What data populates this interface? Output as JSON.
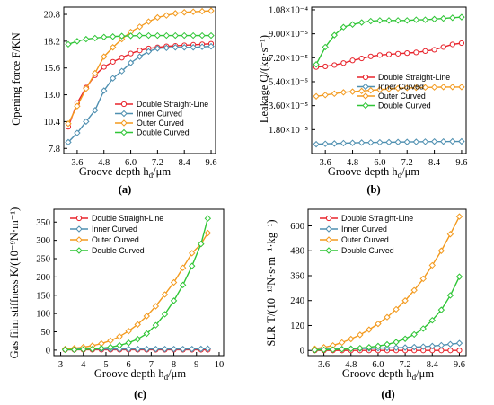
{
  "chart_data": [
    {
      "id": "a",
      "panel_label": "(a)",
      "type": "line",
      "xlabel": "Groove depth h_d/μm",
      "ylabel": "Opening force F/KN",
      "xticks": [
        "3.6",
        "4.8",
        "6.0",
        "7.2",
        "8.4",
        "9.6"
      ],
      "yticks": [
        "7.8",
        "10.4",
        "13.0",
        "15.6",
        "18.2",
        "20.8"
      ],
      "xlim": [
        3.0,
        9.8
      ],
      "ylim": [
        7.3,
        21.5
      ],
      "legend_position": "bottom-right",
      "series": [
        {
          "name": "Double Straight-Line",
          "color": "#e8242c",
          "marker": "circle",
          "x": [
            3.2,
            3.6,
            4.0,
            4.4,
            4.8,
            5.2,
            5.6,
            6.0,
            6.4,
            6.8,
            7.2,
            7.6,
            8.0,
            8.4,
            8.8,
            9.2,
            9.6
          ],
          "y": [
            9.9,
            12.2,
            13.7,
            14.9,
            15.7,
            16.2,
            16.6,
            17.0,
            17.3,
            17.5,
            17.6,
            17.7,
            17.75,
            17.8,
            17.85,
            17.9,
            17.95
          ]
        },
        {
          "name": "Inner Curved",
          "color": "#4e8fb0",
          "marker": "diamond",
          "x": [
            3.2,
            3.6,
            4.0,
            4.4,
            4.8,
            5.2,
            5.6,
            6.0,
            6.4,
            6.8,
            7.2,
            7.6,
            8.0,
            8.4,
            8.8,
            9.2,
            9.6
          ],
          "y": [
            8.4,
            9.3,
            10.4,
            11.5,
            13.4,
            14.6,
            15.3,
            16.1,
            16.7,
            17.2,
            17.5,
            17.55,
            17.6,
            17.6,
            17.6,
            17.65,
            17.7
          ]
        },
        {
          "name": "Outer Curved",
          "color": "#f39a1e",
          "marker": "diamond",
          "x": [
            3.2,
            3.6,
            4.0,
            4.4,
            4.8,
            5.2,
            5.6,
            6.0,
            6.4,
            6.8,
            7.2,
            7.6,
            8.0,
            8.4,
            8.8,
            9.2,
            9.6
          ],
          "y": [
            10.2,
            11.9,
            13.6,
            15.1,
            16.7,
            17.6,
            18.4,
            19.1,
            19.6,
            20.1,
            20.5,
            20.7,
            20.9,
            21.0,
            21.05,
            21.1,
            21.15
          ]
        },
        {
          "name": "Double Curved",
          "color": "#2fc536",
          "marker": "diamond",
          "x": [
            3.2,
            3.6,
            4.0,
            4.4,
            4.8,
            5.2,
            5.6,
            6.0,
            6.4,
            6.8,
            7.2,
            7.6,
            8.0,
            8.4,
            8.8,
            9.2,
            9.6
          ],
          "y": [
            17.9,
            18.2,
            18.4,
            18.5,
            18.6,
            18.65,
            18.7,
            18.72,
            18.75,
            18.75,
            18.75,
            18.75,
            18.75,
            18.75,
            18.75,
            18.75,
            18.75
          ]
        }
      ]
    },
    {
      "id": "b",
      "panel_label": "(b)",
      "type": "line",
      "xlabel": "Groove depth h_d/μm",
      "ylabel": "Leakage Q/(kg·s⁻¹)",
      "xticks": [
        "3.6",
        "4.8",
        "6.0",
        "7.2",
        "8.4",
        "9.6"
      ],
      "yticks": [
        "1.80×10⁻⁵",
        "3.60×10⁻⁵",
        "5.40×10⁻⁵",
        "7.20×10⁻⁵",
        "9.00×10⁻⁵",
        "1.08×10⁻⁴"
      ],
      "xlim": [
        3.0,
        9.8
      ],
      "ylim": [
        0.0,
        0.00011
      ],
      "legend_position": "center-right",
      "series": [
        {
          "name": "Double Straight-Line",
          "color": "#e8242c",
          "marker": "circle",
          "x": [
            3.2,
            3.6,
            4.0,
            4.4,
            4.8,
            5.2,
            5.6,
            6.0,
            6.4,
            6.8,
            7.2,
            7.6,
            8.0,
            8.4,
            8.8,
            9.2,
            9.6
          ],
          "y": [
            6.5e-05,
            6.55e-05,
            6.65e-05,
            6.8e-05,
            7e-05,
            7.15e-05,
            7.3e-05,
            7.4e-05,
            7.45e-05,
            7.5e-05,
            7.55e-05,
            7.6e-05,
            7.7e-05,
            7.8e-05,
            8e-05,
            8.2e-05,
            8.3e-05
          ]
        },
        {
          "name": "Inner Curved",
          "color": "#4e8fb0",
          "marker": "diamond",
          "x": [
            3.2,
            3.6,
            4.0,
            4.4,
            4.8,
            5.2,
            5.6,
            6.0,
            6.4,
            6.8,
            7.2,
            7.6,
            8.0,
            8.4,
            8.8,
            9.2,
            9.6
          ],
          "y": [
            7e-06,
            7.3e-06,
            7.5e-06,
            7.8e-06,
            8e-06,
            8.2e-06,
            8.3e-06,
            8.4e-06,
            8.5e-06,
            8.6e-06,
            8.7e-06,
            8.8e-06,
            8.9e-06,
            9e-06,
            9e-06,
            9.1e-06,
            9.1e-06
          ]
        },
        {
          "name": "Outer Curved",
          "color": "#f39a1e",
          "marker": "diamond",
          "x": [
            3.2,
            3.6,
            4.0,
            4.4,
            4.8,
            5.2,
            5.6,
            6.0,
            6.4,
            6.8,
            7.2,
            7.6,
            8.0,
            8.4,
            8.8,
            9.2,
            9.6
          ],
          "y": [
            4.3e-05,
            4.4e-05,
            4.5e-05,
            4.6e-05,
            4.65e-05,
            4.7e-05,
            4.75e-05,
            4.8e-05,
            4.85e-05,
            4.9e-05,
            4.93e-05,
            4.95e-05,
            4.97e-05,
            4.98e-05,
            5e-05,
            5e-05,
            5e-05
          ]
        },
        {
          "name": "Double Curved",
          "color": "#2fc536",
          "marker": "diamond",
          "x": [
            3.2,
            3.6,
            4.0,
            4.4,
            4.8,
            5.2,
            5.6,
            6.0,
            6.4,
            6.8,
            7.2,
            7.6,
            8.0,
            8.4,
            8.8,
            9.2,
            9.6
          ],
          "y": [
            6.7e-05,
            8e-05,
            8.9e-05,
            9.5e-05,
            9.7e-05,
            9.85e-05,
            9.95e-05,
            0.0001,
            0.0001,
            0.0001,
            0.0001,
            0.0001005,
            0.0001005,
            0.000101,
            0.0001015,
            0.000102,
            0.0001025
          ]
        }
      ]
    },
    {
      "id": "c",
      "panel_label": "(c)",
      "type": "line",
      "xlabel": "Groove depth h_d/μm",
      "ylabel": "Gas film stiffness K/(10⁻⁹N·m⁻¹)",
      "xticks": [
        "3",
        "4",
        "5",
        "6",
        "7",
        "8",
        "9",
        "10"
      ],
      "yticks": [
        "0",
        "50",
        "100",
        "150",
        "200",
        "250",
        "300",
        "350"
      ],
      "xlim": [
        2.7,
        10.2
      ],
      "ylim": [
        -15,
        385
      ],
      "legend_position": "top-left",
      "series": [
        {
          "name": "Double Straight-Line",
          "color": "#e8242c",
          "marker": "circle",
          "x": [
            3.2,
            3.6,
            4.0,
            4.4,
            4.8,
            5.2,
            5.6,
            6.0,
            6.4,
            6.8,
            7.2,
            7.6,
            8.0,
            8.4,
            8.8,
            9.2,
            9.5
          ],
          "y": [
            1,
            1,
            1,
            1,
            1,
            1,
            1,
            1,
            1,
            1,
            1,
            1,
            1,
            1,
            1,
            1,
            1
          ]
        },
        {
          "name": "Inner Curved",
          "color": "#4e8fb0",
          "marker": "diamond",
          "x": [
            3.2,
            3.6,
            4.0,
            4.4,
            4.8,
            5.2,
            5.6,
            6.0,
            6.4,
            6.8,
            7.2,
            7.6,
            8.0,
            8.4,
            8.8,
            9.2,
            9.5
          ],
          "y": [
            3,
            3,
            3,
            3,
            3,
            3,
            3,
            3,
            3,
            3,
            3,
            3,
            3,
            3,
            3,
            3.5,
            4
          ]
        },
        {
          "name": "Outer Curved",
          "color": "#f39a1e",
          "marker": "diamond",
          "x": [
            3.2,
            3.6,
            4.0,
            4.4,
            4.8,
            5.2,
            5.6,
            6.0,
            6.4,
            6.8,
            7.2,
            7.6,
            8.0,
            8.4,
            8.8,
            9.2,
            9.5
          ],
          "y": [
            3,
            5,
            8,
            12,
            18,
            26,
            37,
            52,
            70,
            93,
            120,
            152,
            185,
            225,
            265,
            290,
            320
          ]
        },
        {
          "name": "Double Curved",
          "color": "#2fc536",
          "marker": "diamond",
          "x": [
            3.2,
            3.6,
            4.0,
            4.4,
            4.8,
            5.2,
            5.6,
            6.0,
            6.4,
            6.8,
            7.2,
            7.6,
            8.0,
            8.4,
            8.8,
            9.2,
            9.5
          ],
          "y": [
            1,
            1,
            2,
            3,
            5,
            8,
            13,
            20,
            30,
            45,
            68,
            98,
            135,
            178,
            230,
            290,
            360
          ]
        }
      ]
    },
    {
      "id": "d",
      "panel_label": "(d)",
      "type": "line",
      "xlabel": "Groove depth h_d/μm",
      "ylabel": "SLR T/(10⁻¹³N·s·m⁻¹·kg⁻¹)",
      "xticks": [
        "3.6",
        "4.8",
        "6.0",
        "7.2",
        "8.4",
        "9.6"
      ],
      "yticks": [
        "0",
        "120",
        "240",
        "360",
        "480",
        "600"
      ],
      "xlim": [
        2.9,
        9.9
      ],
      "ylim": [
        -25,
        680
      ],
      "legend_position": "top-left",
      "series": [
        {
          "name": "Double Straight-Line",
          "color": "#e8242c",
          "marker": "circle",
          "x": [
            3.2,
            3.6,
            4.0,
            4.4,
            4.8,
            5.2,
            5.6,
            6.0,
            6.4,
            6.8,
            7.2,
            7.6,
            8.0,
            8.4,
            8.8,
            9.2,
            9.6
          ],
          "y": [
            0,
            0,
            0,
            0,
            0,
            0,
            0,
            0,
            0,
            0,
            0,
            0,
            0,
            0,
            0,
            0,
            0
          ]
        },
        {
          "name": "Inner Curved",
          "color": "#4e8fb0",
          "marker": "diamond",
          "x": [
            3.2,
            3.6,
            4.0,
            4.4,
            4.8,
            5.2,
            5.6,
            6.0,
            6.4,
            6.8,
            7.2,
            7.6,
            8.0,
            8.4,
            8.8,
            9.2,
            9.6
          ],
          "y": [
            5,
            6,
            6,
            7,
            8,
            9,
            10,
            11,
            12,
            13,
            14,
            16,
            18,
            21,
            25,
            30,
            35
          ]
        },
        {
          "name": "Outer Curved",
          "color": "#f39a1e",
          "marker": "diamond",
          "x": [
            3.2,
            3.6,
            4.0,
            4.4,
            4.8,
            5.2,
            5.6,
            6.0,
            6.4,
            6.8,
            7.2,
            7.6,
            8.0,
            8.4,
            8.8,
            9.2,
            9.6
          ],
          "y": [
            8,
            15,
            24,
            38,
            55,
            75,
            100,
            128,
            160,
            198,
            240,
            290,
            345,
            410,
            480,
            560,
            645
          ]
        },
        {
          "name": "Double Curved",
          "color": "#2fc536",
          "marker": "diamond",
          "x": [
            3.2,
            3.6,
            4.0,
            4.4,
            4.8,
            5.2,
            5.6,
            6.0,
            6.4,
            6.8,
            7.2,
            7.6,
            8.0,
            8.4,
            8.8,
            9.2,
            9.6
          ],
          "y": [
            2,
            3,
            4,
            6,
            8,
            11,
            15,
            21,
            29,
            40,
            56,
            77,
            105,
            145,
            195,
            265,
            355
          ]
        }
      ]
    }
  ]
}
